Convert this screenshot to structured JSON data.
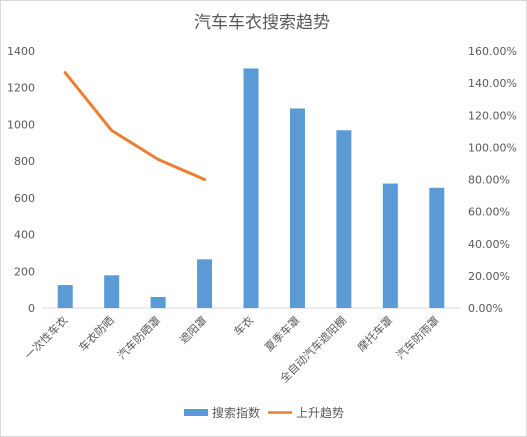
{
  "chart_data": {
    "type": "bar",
    "title": "汽车车衣搜索趋势",
    "categories": [
      "一次性车衣",
      "车衣防晒",
      "汽车防晒罩",
      "遮阳罩",
      "车衣",
      "夏季车罩",
      "全自动汽车遮阳棚",
      "摩托车罩",
      "汽车防雨罩"
    ],
    "series": [
      {
        "name": "搜索指数",
        "type": "bar",
        "axis": "left",
        "values": [
          125,
          178,
          60,
          265,
          1305,
          1087,
          968,
          678,
          655
        ]
      },
      {
        "name": "上升趋势",
        "type": "line",
        "axis": "right",
        "values": [
          1.465,
          1.105,
          0.925,
          0.8,
          null,
          null,
          null,
          null,
          null
        ]
      }
    ],
    "y_left": {
      "min": 0,
      "max": 1400,
      "step": 200,
      "ticks": [
        "0",
        "200",
        "400",
        "600",
        "800",
        "1000",
        "1200",
        "1400"
      ]
    },
    "y_right": {
      "min": 0,
      "max": 1.6,
      "step": 0.2,
      "ticks": [
        "0.00%",
        "20.00%",
        "40.00%",
        "60.00%",
        "80.00%",
        "100.00%",
        "120.00%",
        "140.00%",
        "160.00%"
      ]
    },
    "grid": false,
    "legend": "bottom",
    "colors": {
      "bar": "#5B9BD5",
      "line": "#ED7D31",
      "axis": "#d9d9d9",
      "text": "#595959"
    }
  }
}
